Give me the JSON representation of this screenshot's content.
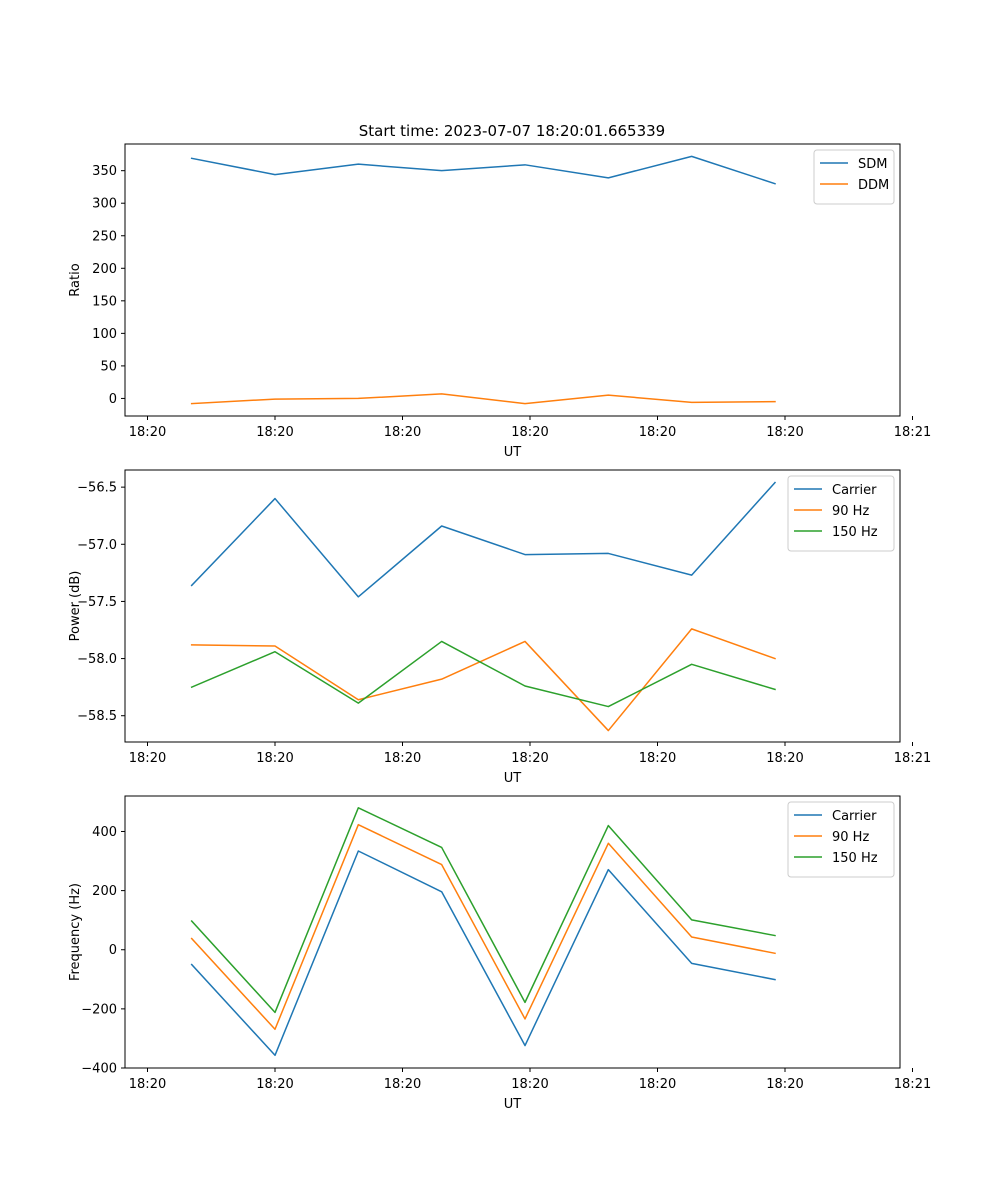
{
  "figure_title": "Start time: 2023-07-07 18:20:01.665339",
  "colors": {
    "blue": "#1f77b4",
    "orange": "#ff7f0e",
    "green": "#2ca02c"
  },
  "chart_data": [
    {
      "type": "line",
      "xlabel": "UT",
      "ylabel": "Ratio",
      "x": [
        1,
        2,
        3,
        4,
        5,
        6,
        7,
        8
      ],
      "xlim": [
        0.2,
        9.5
      ],
      "xticks": [
        0.47,
        2.0,
        3.53,
        5.06,
        6.59,
        8.12,
        9.65
      ],
      "xticklabels": [
        "18:20",
        "18:20",
        "18:20",
        "18:20",
        "18:20",
        "18:20",
        "18:21"
      ],
      "ylim": [
        -27,
        391
      ],
      "yticks": [
        0,
        50,
        100,
        150,
        200,
        250,
        300,
        350
      ],
      "legend_position": "top-right",
      "series": [
        {
          "name": "SDM",
          "color": "#1f77b4",
          "values": [
            369,
            344,
            360,
            350,
            359,
            339,
            372,
            330
          ]
        },
        {
          "name": "DDM",
          "color": "#ff7f0e",
          "values": [
            -8,
            -1,
            0,
            7,
            -8,
            5,
            -6,
            -5
          ]
        }
      ]
    },
    {
      "type": "line",
      "xlabel": "UT",
      "ylabel": "Power (dB)",
      "x": [
        1,
        2,
        3,
        4,
        5,
        6,
        7,
        8
      ],
      "xlim": [
        0.2,
        9.5
      ],
      "xticks": [
        0.47,
        2.0,
        3.53,
        5.06,
        6.59,
        8.12,
        9.65
      ],
      "xticklabels": [
        "18:20",
        "18:20",
        "18:20",
        "18:20",
        "18:20",
        "18:20",
        "18:21"
      ],
      "ylim": [
        -58.73,
        -56.35
      ],
      "yticks": [
        -58.5,
        -58.0,
        -57.5,
        -57.0,
        -56.5
      ],
      "ytick_decimals": 1,
      "legend_position": "top-right",
      "series": [
        {
          "name": "Carrier",
          "color": "#1f77b4",
          "values": [
            -57.36,
            -56.6,
            -57.46,
            -56.84,
            -57.09,
            -57.08,
            -57.27,
            -56.46
          ]
        },
        {
          "name": "90 Hz",
          "color": "#ff7f0e",
          "values": [
            -57.88,
            -57.89,
            -58.36,
            -58.18,
            -57.85,
            -58.63,
            -57.74,
            -58.0
          ]
        },
        {
          "name": "150 Hz",
          "color": "#2ca02c",
          "values": [
            -58.25,
            -57.94,
            -58.39,
            -57.85,
            -58.24,
            -58.42,
            -58.05,
            -58.27
          ]
        }
      ]
    },
    {
      "type": "line",
      "xlabel": "UT",
      "ylabel": "Frequency (Hz)",
      "x": [
        1,
        2,
        3,
        4,
        5,
        6,
        7,
        8
      ],
      "xlim": [
        0.2,
        9.5
      ],
      "xticks": [
        0.47,
        2.0,
        3.53,
        5.06,
        6.59,
        8.12,
        9.65
      ],
      "xticklabels": [
        "18:20",
        "18:20",
        "18:20",
        "18:20",
        "18:20",
        "18:20",
        "18:21"
      ],
      "ylim": [
        -400,
        520
      ],
      "yticks": [
        -400,
        -200,
        0,
        200,
        400
      ],
      "legend_position": "top-right",
      "series": [
        {
          "name": "Carrier",
          "color": "#1f77b4",
          "values": [
            -50,
            -357,
            334,
            196,
            -324,
            271,
            -46,
            -101
          ]
        },
        {
          "name": "90 Hz",
          "color": "#ff7f0e",
          "values": [
            38,
            -269,
            423,
            288,
            -234,
            360,
            43,
            -12
          ]
        },
        {
          "name": "150 Hz",
          "color": "#2ca02c",
          "values": [
            97,
            -212,
            480,
            346,
            -178,
            420,
            101,
            48
          ]
        }
      ]
    }
  ]
}
